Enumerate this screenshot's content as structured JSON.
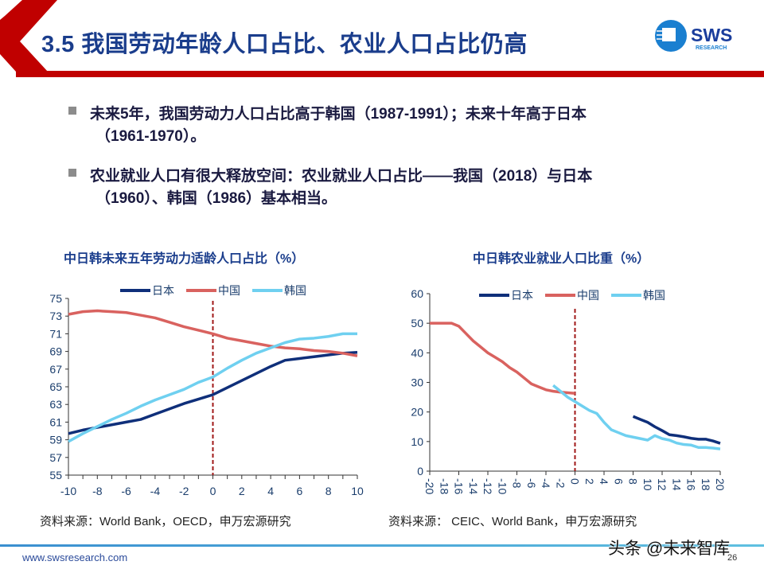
{
  "header": {
    "title": "3.5 我国劳动年龄人口占比、农业人口占比仍高",
    "logo_text": "SWS",
    "logo_subtext": "RESEARCH"
  },
  "bullets": [
    {
      "line1": "未来5年，我国劳动力人口占比高于韩国（1987-1991）；未来十年高于日本",
      "line2": "（1961-1970）。"
    },
    {
      "line1": "农业就业人口有很大释放空间：农业就业人口占比——我国（2018）与日本",
      "line2": "（1960）、韩国（1986）基本相当。"
    }
  ],
  "colors": {
    "japan": "#0f2f7a",
    "china": "#d9625f",
    "korea": "#6fd0f0",
    "divider": "#a01818",
    "accent_red": "#c00000",
    "text_blue": "#1a3d8c"
  },
  "chart_data": [
    {
      "type": "line",
      "title": "中日韩未来五年劳动力适龄人口占比（%）",
      "source": "资料来源：World Bank，OECD，申万宏源研究",
      "x": [
        -10,
        -9,
        -8,
        -7,
        -6,
        -5,
        -4,
        -3,
        -2,
        -1,
        0,
        1,
        2,
        3,
        4,
        5,
        6,
        7,
        8,
        9,
        10
      ],
      "xticks": [
        -10,
        -8,
        -6,
        -4,
        -2,
        0,
        2,
        4,
        6,
        8,
        10
      ],
      "xlim": [
        -10,
        10
      ],
      "ylim": [
        55,
        75
      ],
      "yticks": [
        55,
        57,
        59,
        61,
        63,
        65,
        67,
        69,
        71,
        73,
        75
      ],
      "reference_line_x": 0,
      "legend": "top",
      "series": [
        {
          "name": "日本",
          "color": "#0f2f7a",
          "values": [
            59.7,
            60.1,
            60.4,
            60.7,
            61.0,
            61.3,
            61.9,
            62.5,
            63.1,
            63.6,
            64.1,
            64.9,
            65.7,
            66.5,
            67.3,
            68.0,
            68.2,
            68.4,
            68.6,
            68.8,
            68.9
          ]
        },
        {
          "name": "中国",
          "color": "#d9625f",
          "values": [
            73.2,
            73.5,
            73.6,
            73.5,
            73.4,
            73.1,
            72.8,
            72.3,
            71.8,
            71.4,
            71.0,
            70.5,
            70.2,
            69.9,
            69.6,
            69.4,
            69.3,
            69.1,
            69.0,
            68.8,
            68.5
          ]
        },
        {
          "name": "韩国",
          "color": "#6fd0f0",
          "values": [
            58.8,
            59.7,
            60.5,
            61.3,
            62.0,
            62.8,
            63.5,
            64.1,
            64.7,
            65.5,
            66.1,
            67.1,
            68.0,
            68.8,
            69.4,
            70.0,
            70.4,
            70.5,
            70.7,
            71.0,
            71.0
          ]
        }
      ]
    },
    {
      "type": "line",
      "title": "中日韩农业就业人口比重（%）",
      "source": "资料来源： CEIC、World Bank，申万宏源研究",
      "xticks": [
        -20,
        -18,
        -16,
        -14,
        -12,
        -10,
        -8,
        -6,
        -4,
        -2,
        0,
        2,
        4,
        6,
        8,
        10,
        12,
        14,
        16,
        18,
        20
      ],
      "xlim": [
        -20,
        20
      ],
      "ylim": [
        0,
        60
      ],
      "yticks": [
        0,
        10,
        20,
        30,
        40,
        50,
        60
      ],
      "reference_line_x": 0,
      "legend": "top",
      "series": [
        {
          "name": "日本",
          "color": "#0f2f7a",
          "x": [
            8,
            9,
            10,
            11,
            12,
            13,
            14,
            15,
            16,
            17,
            18,
            19,
            20
          ],
          "values": [
            18.5,
            17.5,
            16.5,
            15,
            13.7,
            12.3,
            12,
            11.6,
            11.1,
            10.8,
            10.8,
            10.2,
            9.4
          ]
        },
        {
          "name": "中国",
          "color": "#d9625f",
          "x": [
            -20,
            -19,
            -18,
            -17,
            -16,
            -15,
            -14,
            -13,
            -12,
            -11,
            -10,
            -9,
            -8,
            -7,
            -6,
            -5,
            -4,
            -3,
            -2,
            -1,
            0
          ],
          "values": [
            50,
            50,
            50,
            50,
            49,
            46.5,
            44,
            42,
            40,
            38.5,
            37,
            35,
            33.5,
            31.5,
            29.5,
            28.5,
            27.5,
            27,
            26.7,
            26.5,
            26.3
          ]
        },
        {
          "name": "韩国",
          "color": "#6fd0f0",
          "x": [
            -3,
            -2,
            -1,
            0,
            1,
            2,
            3,
            4,
            5,
            6,
            7,
            8,
            9,
            10,
            11,
            12,
            13,
            14,
            15,
            16,
            17,
            18,
            19,
            20
          ],
          "values": [
            29,
            27,
            25,
            23.5,
            22,
            20.5,
            19.5,
            16.5,
            14,
            13,
            12,
            11.5,
            11,
            10.5,
            12,
            11,
            10.5,
            9.5,
            9,
            8.8,
            8,
            8,
            7.8,
            7.5
          ]
        }
      ]
    }
  ],
  "footer": {
    "url": "www.swsresearch.com",
    "page": "26",
    "watermark": "头条 @未来智库"
  }
}
